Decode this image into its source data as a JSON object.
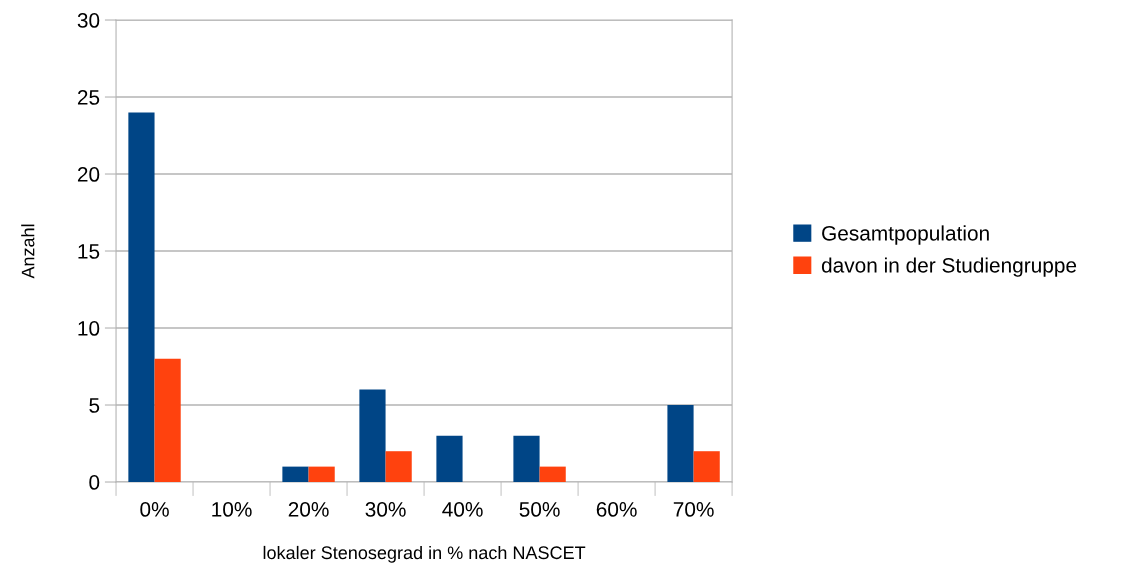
{
  "chart_data": {
    "type": "bar",
    "xlabel": "lokaler Stenosegrad in % nach NASCET",
    "ylabel": "Anzahl",
    "categories": [
      "0%",
      "10%",
      "20%",
      "30%",
      "40%",
      "50%",
      "60%",
      "70%"
    ],
    "series": [
      {
        "name": "Gesamtpopulation",
        "color": "#004586",
        "values": [
          24,
          0,
          1,
          6,
          3,
          3,
          0,
          5
        ]
      },
      {
        "name": "davon in der Studiengruppe",
        "color": "#ff420e",
        "values": [
          8,
          0,
          1,
          2,
          0,
          1,
          0,
          2
        ]
      }
    ],
    "ylim": [
      0,
      30
    ],
    "yticks": [
      0,
      5,
      10,
      15,
      20,
      25,
      30
    ],
    "grid": "y",
    "legend": "right"
  }
}
